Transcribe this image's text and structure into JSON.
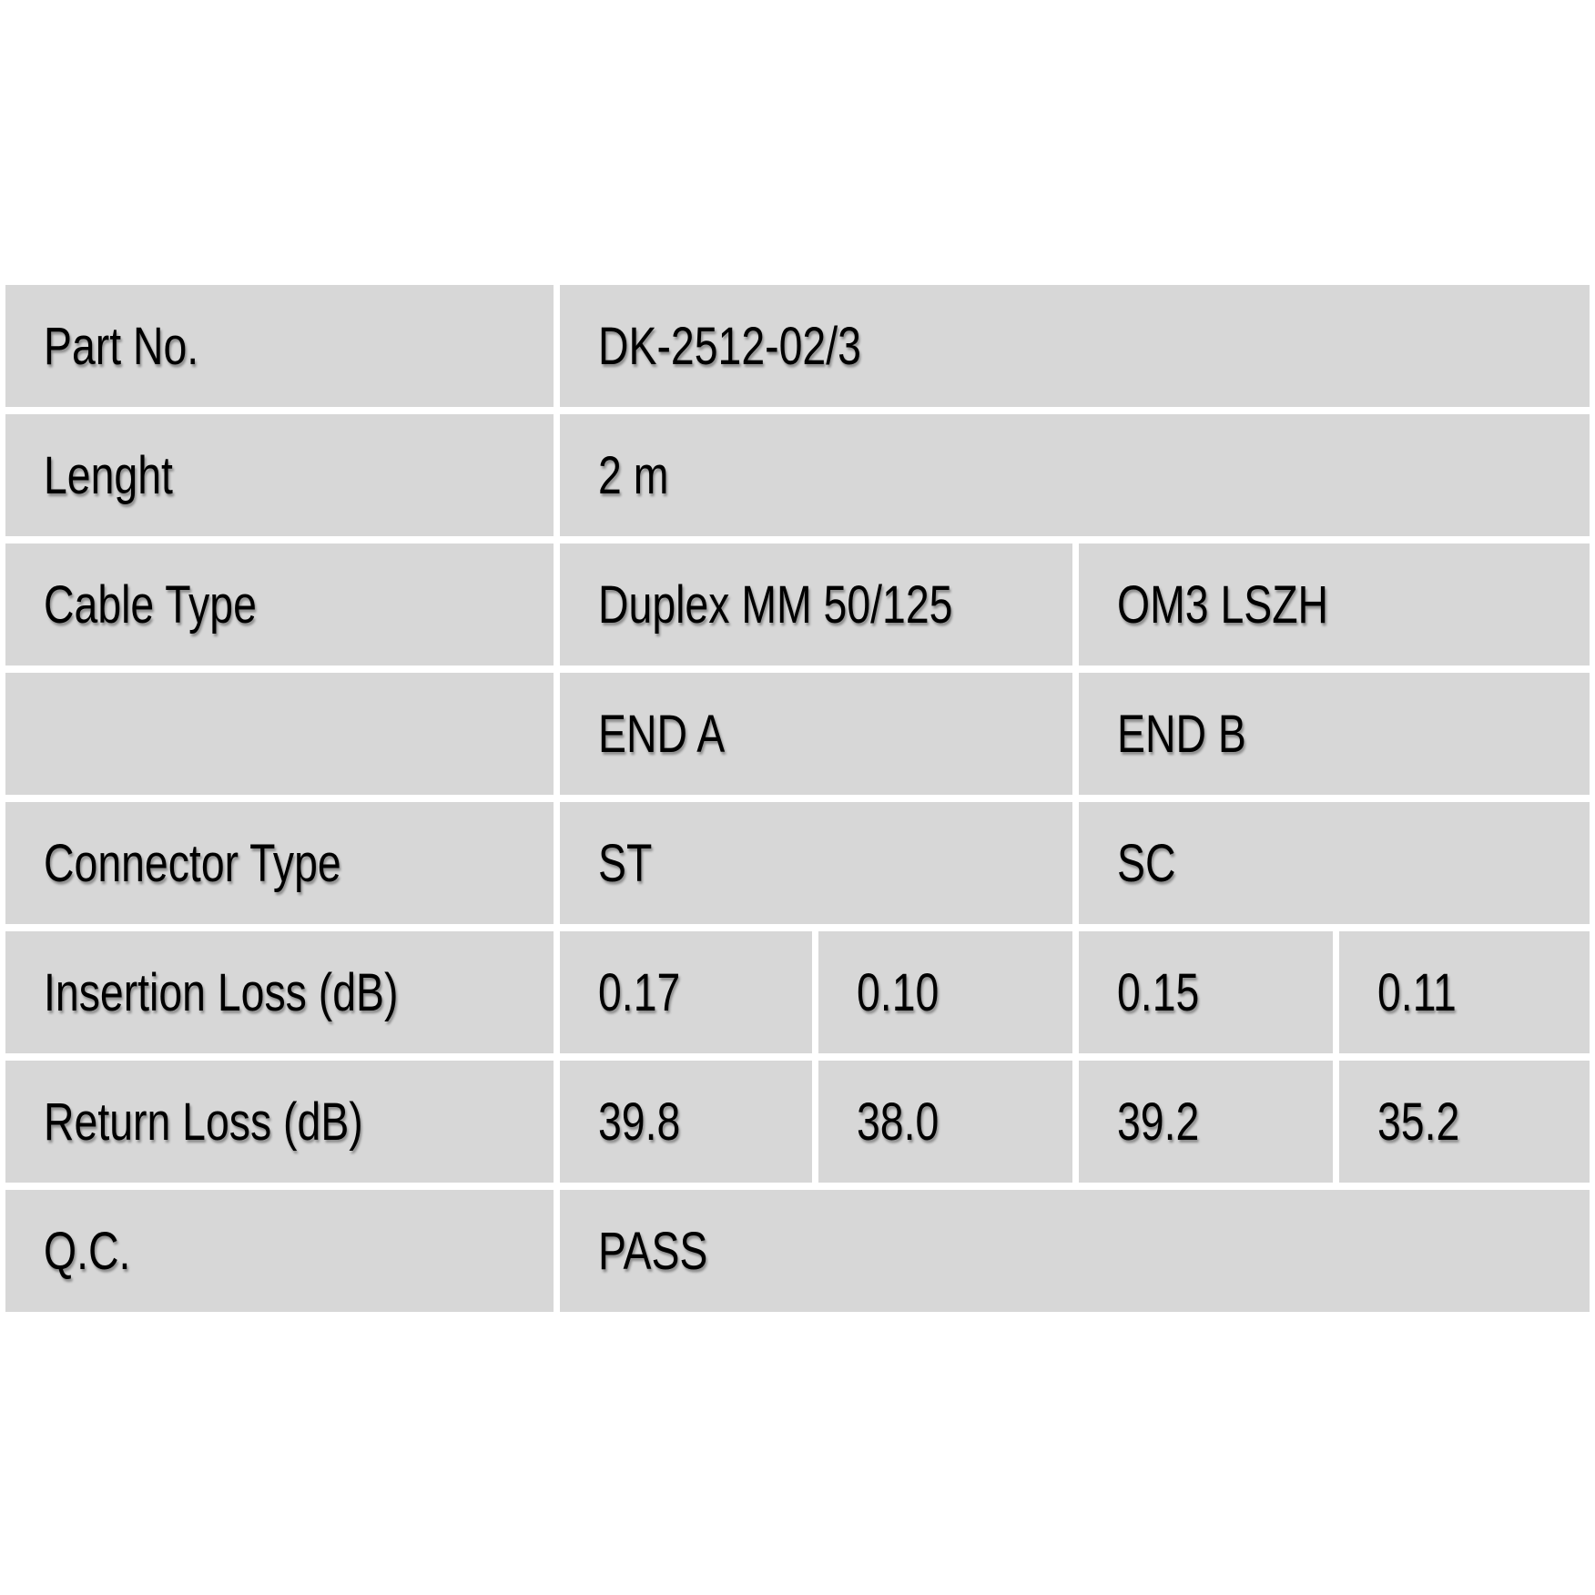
{
  "colors": {
    "page_background": "#ffffff",
    "cell_background": "#d7d7d7",
    "text": "#000000"
  },
  "table": {
    "rows": [
      {
        "label": "Part No.",
        "values": [
          {
            "text": "DK-2512-02/3"
          }
        ]
      },
      {
        "label": "Lenght",
        "values": [
          {
            "text": "2 m"
          }
        ]
      },
      {
        "label": "Cable Type",
        "values": [
          {
            "text": "Duplex MM 50/125"
          },
          {
            "text": "OM3 LSZH"
          }
        ]
      },
      {
        "label": "",
        "values": [
          {
            "text": "END A"
          },
          {
            "text": "END B"
          }
        ]
      },
      {
        "label": "Connector Type",
        "values": [
          {
            "text": "ST"
          },
          {
            "text": "SC"
          }
        ]
      },
      {
        "label": "Insertion Loss (dB)",
        "values": [
          {
            "text": "0.17"
          },
          {
            "text": "0.10"
          },
          {
            "text": "0.15"
          },
          {
            "text": "0.11"
          }
        ]
      },
      {
        "label": "Return Loss (dB)",
        "values": [
          {
            "text": "39.8"
          },
          {
            "text": "38.0"
          },
          {
            "text": "39.2"
          },
          {
            "text": "35.2"
          }
        ]
      },
      {
        "label": "Q.C.",
        "values": [
          {
            "text": "PASS"
          }
        ]
      }
    ]
  }
}
